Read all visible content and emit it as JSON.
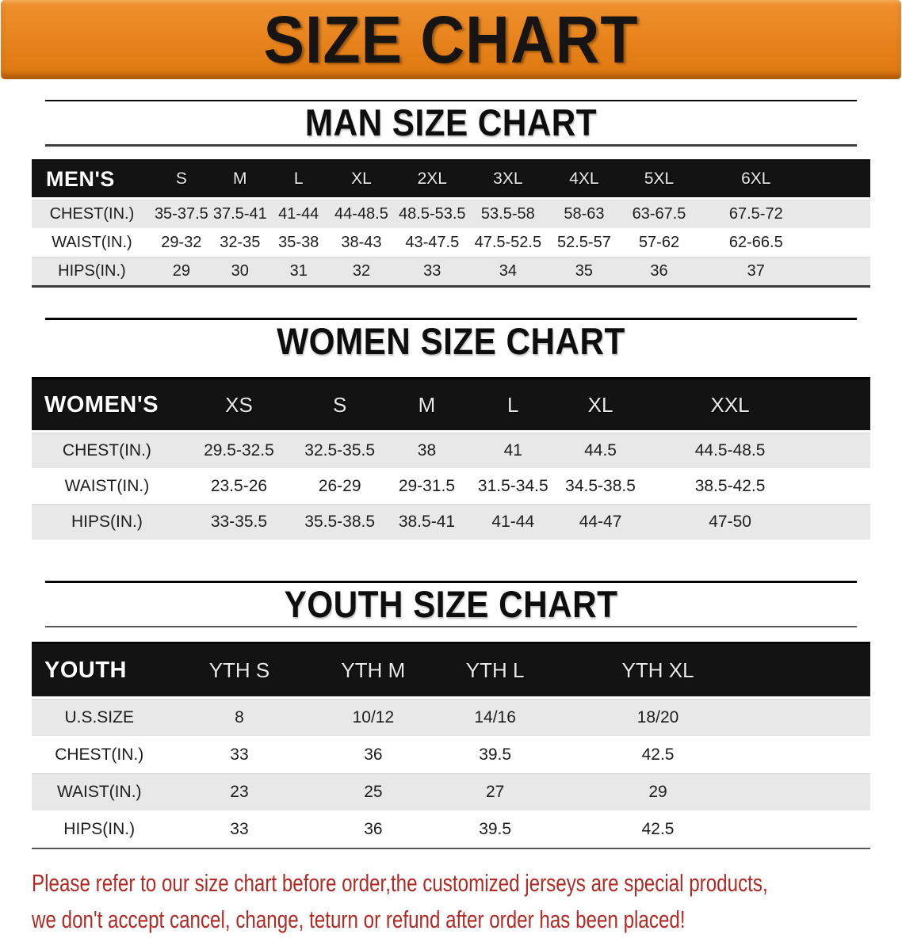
{
  "banner": {
    "title": "SIZE CHART",
    "bg_color": "#e8851e",
    "text_color": "#171513"
  },
  "sections": {
    "men": {
      "title": "MAN SIZE CHART",
      "header_label": "MEN'S",
      "columns": [
        "S",
        "M",
        "L",
        "XL",
        "2XL",
        "3XL",
        "4XL",
        "5XL",
        "6XL"
      ],
      "rows": [
        {
          "label": "CHEST(IN.)",
          "values": [
            "35-37.5",
            "37.5-41",
            "41-44",
            "44-48.5",
            "48.5-53.5",
            "53.5-58",
            "58-63",
            "63-67.5",
            "67.5-72"
          ]
        },
        {
          "label": "WAIST(IN.)",
          "values": [
            "29-32",
            "32-35",
            "35-38",
            "38-43",
            "43-47.5",
            "47.5-52.5",
            "52.5-57",
            "57-62",
            "62-66.5"
          ]
        },
        {
          "label": "HIPS(IN.)",
          "values": [
            "29",
            "30",
            "31",
            "32",
            "33",
            "34",
            "35",
            "36",
            "37"
          ]
        }
      ]
    },
    "women": {
      "title": "WOMEN SIZE CHART",
      "header_label": "WOMEN'S",
      "columns": [
        "XS",
        "S",
        "M",
        "L",
        "XL",
        "XXL"
      ],
      "rows": [
        {
          "label": "CHEST(IN.)",
          "values": [
            "29.5-32.5",
            "32.5-35.5",
            "38",
            "41",
            "44.5",
            "44.5-48.5"
          ]
        },
        {
          "label": "WAIST(IN.)",
          "values": [
            "23.5-26",
            "26-29",
            "29-31.5",
            "31.5-34.5",
            "34.5-38.5",
            "38.5-42.5"
          ]
        },
        {
          "label": "HIPS(IN.)",
          "values": [
            "33-35.5",
            "35.5-38.5",
            "38.5-41",
            "41-44",
            "44-47",
            "47-50"
          ]
        }
      ]
    },
    "youth": {
      "title": "YOUTH SIZE CHART",
      "header_label": "YOUTH",
      "columns": [
        "YTH S",
        "YTH M",
        "YTH L",
        "YTH XL"
      ],
      "rows": [
        {
          "label": "U.S.SIZE",
          "values": [
            "8",
            "10/12",
            "14/16",
            "18/20"
          ]
        },
        {
          "label": "CHEST(IN.)",
          "values": [
            "33",
            "36",
            "39.5",
            "42.5"
          ]
        },
        {
          "label": "WAIST(IN.)",
          "values": [
            "23",
            "25",
            "27",
            "29"
          ]
        },
        {
          "label": "HIPS(IN.)",
          "values": [
            "33",
            "36",
            "39.5",
            "42.5"
          ]
        }
      ]
    }
  },
  "disclaimer": {
    "line1": "Please refer to our size chart before order,the customized jerseys are special products,",
    "line2": "we don't accept cancel, change, teturn or refund after order has been placed!",
    "color": "#b12a23"
  }
}
